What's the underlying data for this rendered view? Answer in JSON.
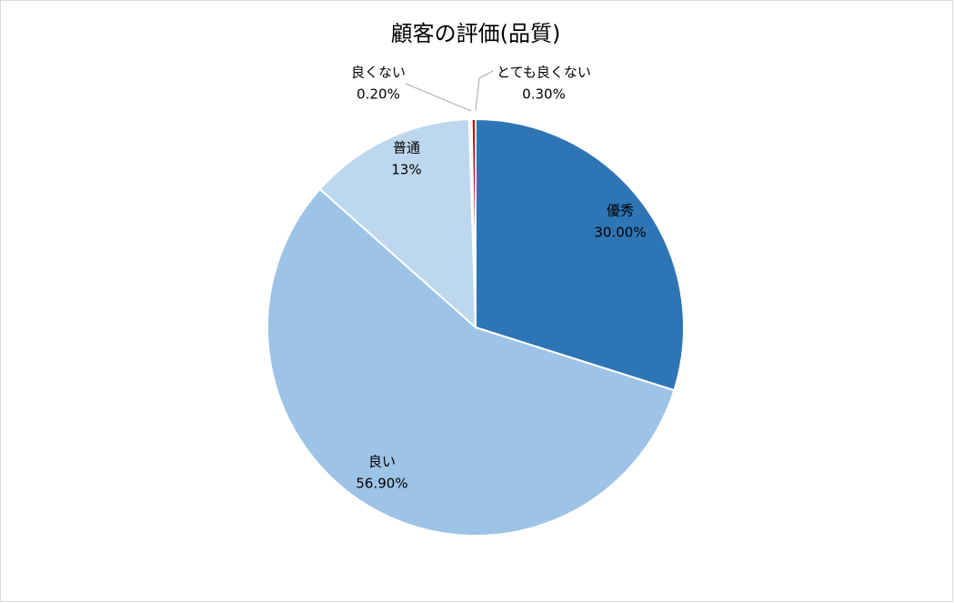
{
  "chart_data": {
    "type": "pie",
    "title": "顧客の評価(品質)",
    "categories": [
      "優秀",
      "良い",
      "普通",
      "良くない",
      "とても良くない"
    ],
    "values": [
      30.0,
      56.9,
      13,
      0.2,
      0.3
    ],
    "value_labels": [
      "30.00%",
      "56.90%",
      "13%",
      "0.20%",
      "0.30%"
    ],
    "colors": [
      "#2e75b6",
      "#9dc3e6",
      "#bdd7ee",
      "#deebf7",
      "#c00000"
    ]
  }
}
